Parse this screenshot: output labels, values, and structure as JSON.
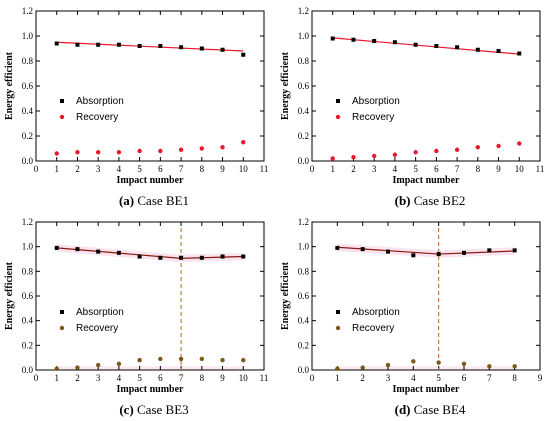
{
  "colors": {
    "fit_line": "#e8192c",
    "fit_line_dark": "#8b1a0e",
    "absorption": "#000000",
    "recovery_bright": "#e8192c",
    "recovery_dark": "#7a5a1a",
    "dashed_line": "#b5651d",
    "band": "#f7dcea"
  },
  "chart_data": [
    {
      "type": "scatter",
      "caption_label": "(a)",
      "caption_text": "Case BE1",
      "xlabel": "Impact number",
      "ylabel": "Energy efficient",
      "xlim": [
        0,
        11
      ],
      "ylim": [
        0,
        1.2
      ],
      "xticks": [
        "0",
        "1",
        "2",
        "3",
        "4",
        "5",
        "6",
        "7",
        "8",
        "9",
        "10",
        "11"
      ],
      "yticks": [
        "0.0",
        "0.2",
        "0.4",
        "0.6",
        "0.8",
        "1.0",
        "1.2"
      ],
      "legend_position": "left-middle",
      "x": [
        1,
        2,
        3,
        4,
        5,
        6,
        7,
        8,
        9,
        10
      ],
      "series": [
        {
          "name": "Absorption",
          "marker": "square",
          "values": [
            0.94,
            0.93,
            0.93,
            0.93,
            0.92,
            0.92,
            0.91,
            0.9,
            0.89,
            0.85
          ]
        },
        {
          "name": "Recovery",
          "marker": "circle",
          "values": [
            0.06,
            0.07,
            0.07,
            0.07,
            0.08,
            0.08,
            0.09,
            0.1,
            0.11,
            0.15
          ]
        }
      ],
      "fit_lines": [
        {
          "points": [
            [
              1,
              0.95
            ],
            [
              10,
              0.88
            ]
          ]
        }
      ],
      "vline": null
    },
    {
      "type": "scatter",
      "caption_label": "(b)",
      "caption_text": "Case BE2",
      "xlabel": "Impact number",
      "ylabel": "Energy efficient",
      "xlim": [
        0,
        11
      ],
      "ylim": [
        0,
        1.2
      ],
      "xticks": [
        "0",
        "1",
        "2",
        "3",
        "4",
        "5",
        "6",
        "7",
        "8",
        "9",
        "10",
        "11"
      ],
      "yticks": [
        "0.0",
        "0.2",
        "0.4",
        "0.6",
        "0.8",
        "1.0",
        "1.2"
      ],
      "legend_position": "left-middle",
      "x": [
        1,
        2,
        3,
        4,
        5,
        6,
        7,
        8,
        9,
        10
      ],
      "series": [
        {
          "name": "Absorption",
          "marker": "square",
          "values": [
            0.98,
            0.97,
            0.96,
            0.95,
            0.93,
            0.92,
            0.91,
            0.89,
            0.88,
            0.86
          ]
        },
        {
          "name": "Recovery",
          "marker": "circle",
          "values": [
            0.02,
            0.03,
            0.04,
            0.05,
            0.07,
            0.08,
            0.09,
            0.11,
            0.12,
            0.14
          ]
        }
      ],
      "fit_lines": [
        {
          "points": [
            [
              1,
              0.985
            ],
            [
              10,
              0.855
            ]
          ]
        }
      ],
      "vline": null
    },
    {
      "type": "scatter",
      "caption_label": "(c)",
      "caption_text": "Case BE3",
      "xlabel": "Impact number",
      "ylabel": "Energy efficient",
      "xlim": [
        0,
        11
      ],
      "ylim": [
        0,
        1.2
      ],
      "xticks": [
        "0",
        "1",
        "2",
        "3",
        "4",
        "5",
        "6",
        "7",
        "8",
        "9",
        "10",
        "11"
      ],
      "yticks": [
        "0.0",
        "0.2",
        "0.4",
        "0.6",
        "0.8",
        "1.0",
        "1.2"
      ],
      "legend_position": "left-middle",
      "x": [
        1,
        2,
        3,
        4,
        5,
        6,
        7,
        8,
        9,
        10
      ],
      "series": [
        {
          "name": "Absorption",
          "marker": "square",
          "values": [
            0.99,
            0.98,
            0.96,
            0.95,
            0.92,
            0.91,
            0.91,
            0.91,
            0.92,
            0.92
          ]
        },
        {
          "name": "Recovery",
          "marker": "circle",
          "values": [
            0.01,
            0.02,
            0.04,
            0.05,
            0.08,
            0.09,
            0.09,
            0.09,
            0.08,
            0.08
          ]
        }
      ],
      "fit_lines": [
        {
          "points": [
            [
              1,
              0.99
            ],
            [
              7,
              0.905
            ]
          ]
        },
        {
          "points": [
            [
              7,
              0.905
            ],
            [
              10,
              0.92
            ]
          ]
        }
      ],
      "vline": 7
    },
    {
      "type": "scatter",
      "caption_label": "(d)",
      "caption_text": "Case BE4",
      "xlabel": "Impact number",
      "ylabel": "Energy efficient",
      "xlim": [
        0,
        9
      ],
      "ylim": [
        0,
        1.2
      ],
      "xticks": [
        "0",
        "1",
        "2",
        "3",
        "4",
        "5",
        "6",
        "7",
        "8",
        "9"
      ],
      "yticks": [
        "0.0",
        "0.2",
        "0.4",
        "0.6",
        "0.8",
        "1.0",
        "1.2"
      ],
      "legend_position": "left-middle",
      "x": [
        1,
        2,
        3,
        4,
        5,
        6,
        7,
        8
      ],
      "series": [
        {
          "name": "Absorption",
          "marker": "square",
          "values": [
            0.99,
            0.98,
            0.96,
            0.93,
            0.94,
            0.95,
            0.97,
            0.97
          ]
        },
        {
          "name": "Recovery",
          "marker": "circle",
          "values": [
            0.01,
            0.02,
            0.04,
            0.07,
            0.06,
            0.05,
            0.03,
            0.03
          ]
        }
      ],
      "fit_lines": [
        {
          "points": [
            [
              1,
              0.995
            ],
            [
              5,
              0.94
            ]
          ]
        },
        {
          "points": [
            [
              5,
              0.94
            ],
            [
              8,
              0.965
            ]
          ]
        }
      ],
      "vline": 5
    }
  ]
}
